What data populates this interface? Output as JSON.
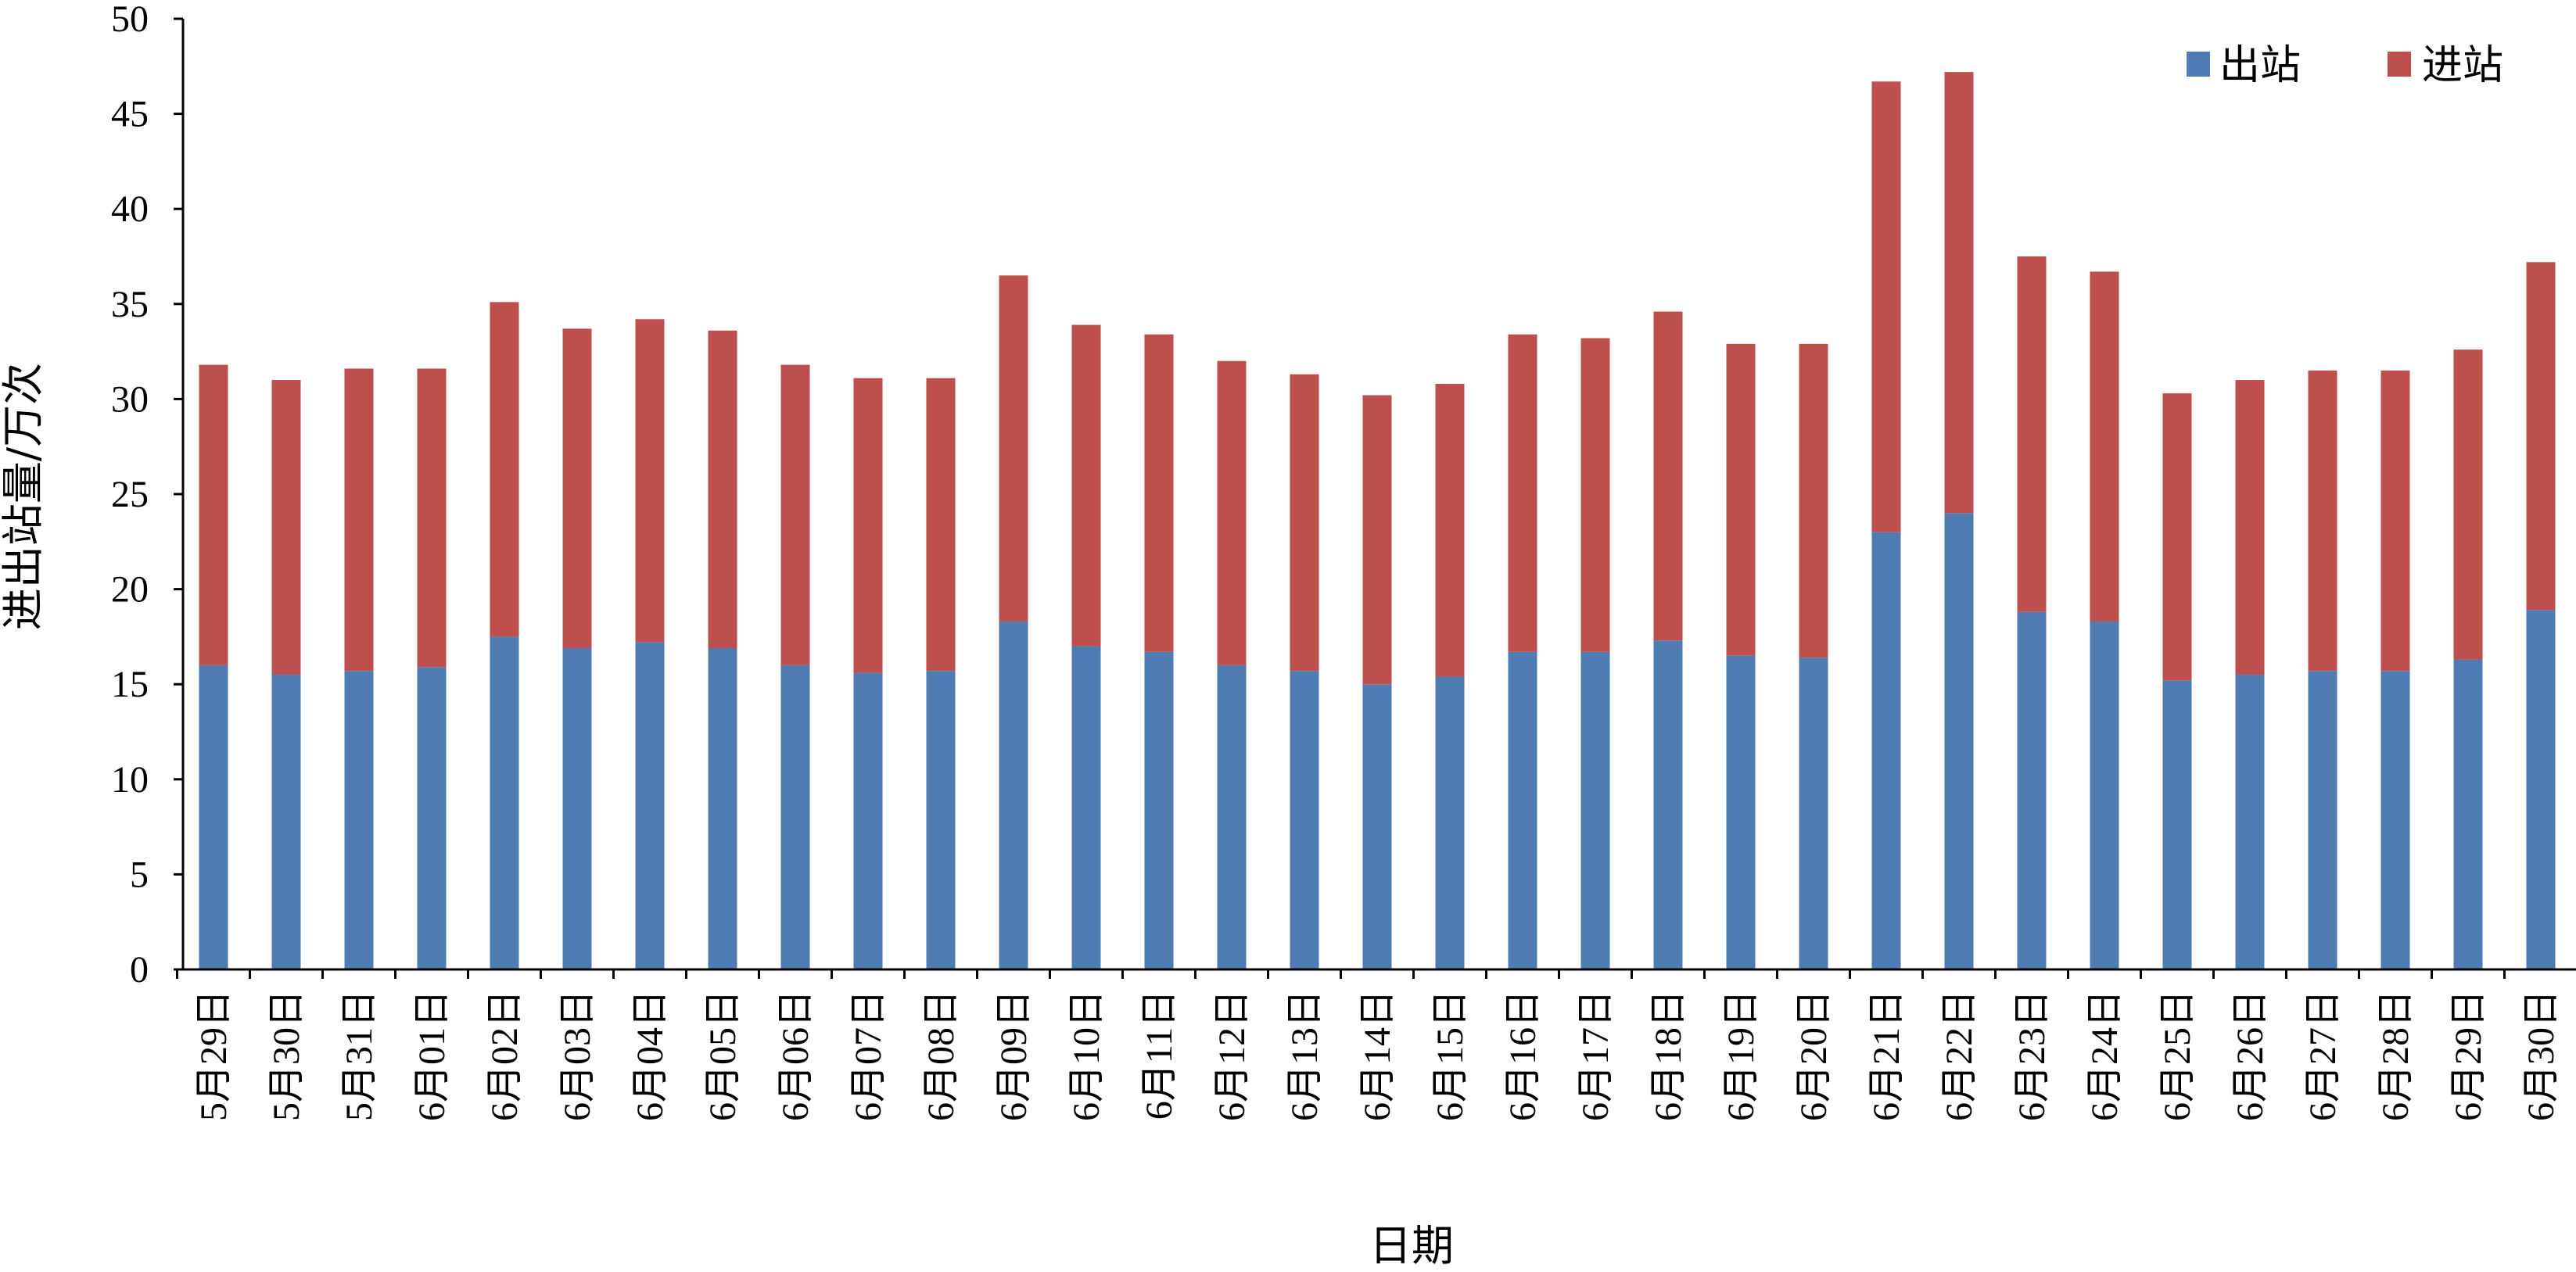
{
  "chart_data": {
    "type": "bar",
    "stacked": true,
    "title": "",
    "xlabel": "日期",
    "ylabel": "进出站量/万次",
    "ylim": [
      0,
      50
    ],
    "yticks": [
      0,
      5,
      10,
      15,
      20,
      25,
      30,
      35,
      40,
      45,
      50
    ],
    "grid": false,
    "legend_position": "top-right",
    "categories": [
      "5月29日",
      "5月30日",
      "5月31日",
      "6月01日",
      "6月02日",
      "6月03日",
      "6月04日",
      "6月05日",
      "6月06日",
      "6月07日",
      "6月08日",
      "6月09日",
      "6月10日",
      "6月11日",
      "6月12日",
      "6月13日",
      "6月14日",
      "6月15日",
      "6月16日",
      "6月17日",
      "6月18日",
      "6月19日",
      "6月20日",
      "6月21日",
      "6月22日",
      "6月23日",
      "6月24日",
      "6月25日",
      "6月26日",
      "6月27日",
      "6月28日",
      "6月29日",
      "6月30日"
    ],
    "series": [
      {
        "name": "出站",
        "color": "#4F7BB3",
        "values": [
          16.0,
          15.5,
          15.7,
          15.9,
          17.5,
          16.9,
          17.2,
          16.9,
          16.0,
          15.6,
          15.7,
          18.3,
          17.0,
          16.7,
          16.0,
          15.7,
          15.0,
          15.4,
          16.7,
          16.7,
          17.3,
          16.5,
          16.4,
          23.0,
          24.0,
          18.8,
          18.3,
          15.2,
          15.5,
          15.7,
          15.7,
          16.3,
          18.9
        ]
      },
      {
        "name": "进站",
        "color": "#BD4F4C",
        "values": [
          15.8,
          15.5,
          15.9,
          15.7,
          17.6,
          16.8,
          17.0,
          16.7,
          15.8,
          15.5,
          15.4,
          18.2,
          16.9,
          16.7,
          16.0,
          15.6,
          15.2,
          15.4,
          16.7,
          16.5,
          17.3,
          16.4,
          16.5,
          23.7,
          23.2,
          18.7,
          18.4,
          15.1,
          15.5,
          15.8,
          15.8,
          16.3,
          18.3
        ]
      }
    ]
  }
}
